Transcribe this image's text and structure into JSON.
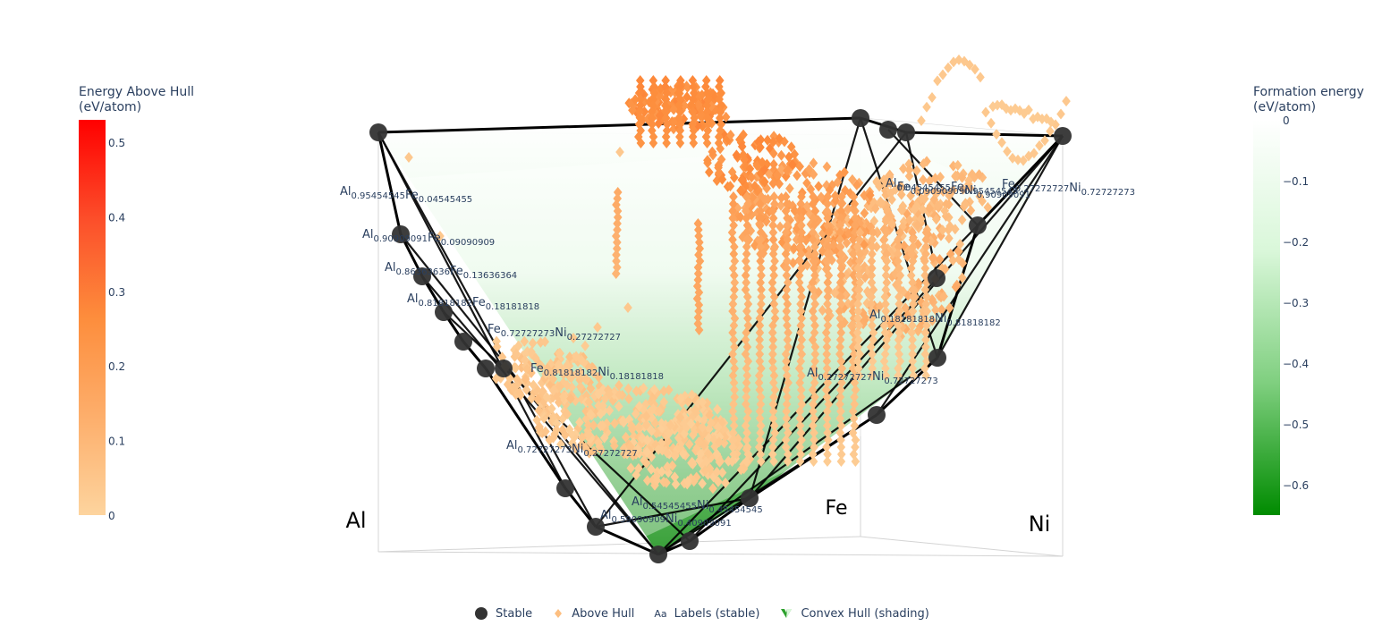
{
  "chart_data": {
    "type": "scatter",
    "subtype": "ternary phase diagram (3D convex hull view)",
    "elements": [
      "Al",
      "Fe",
      "Ni"
    ],
    "stable_labels": [
      {
        "el": [
          "Al",
          "Fe"
        ],
        "sub": [
          "0.95454545",
          "0.04545455"
        ]
      },
      {
        "el": [
          "Al",
          "Fe"
        ],
        "sub": [
          "0.90909091",
          "0.09090909"
        ]
      },
      {
        "el": [
          "Al",
          "Fe"
        ],
        "sub": [
          "0.86363636",
          "0.13636364"
        ]
      },
      {
        "el": [
          "Al",
          "Fe"
        ],
        "sub": [
          "0.81818182",
          "0.18181818"
        ]
      },
      {
        "el": [
          "Fe",
          "Ni"
        ],
        "sub": [
          "0.72727273",
          "0.27272727"
        ]
      },
      {
        "el": [
          "Fe",
          "Ni"
        ],
        "sub": [
          "0.81818182",
          "0.18181818"
        ]
      },
      {
        "el": [
          "Fe",
          "Ni"
        ],
        "sub": [
          "0.09090909",
          "0.90909091"
        ]
      },
      {
        "el": [
          "Al",
          "Ni"
        ],
        "sub": [
          "0.72727273",
          "0.27272727"
        ]
      },
      {
        "el": [
          "Al",
          "Ni"
        ],
        "sub": [
          "0.59090909",
          "0.40909091"
        ]
      },
      {
        "el": [
          "Al",
          "Ni"
        ],
        "sub": [
          "0.54545455",
          "0.45454545"
        ]
      },
      {
        "el": [
          "Al",
          "Ni"
        ],
        "sub": [
          "0.27272727",
          "0.72727273"
        ]
      },
      {
        "el": [
          "Al",
          "Ni"
        ],
        "sub": [
          "0.18181818",
          "0.81818182"
        ]
      },
      {
        "el": [
          "Al",
          "Fe"
        ],
        "sub": [
          "0.04545455",
          "0.95454545"
        ]
      },
      {
        "el": [
          "Fe",
          "Ni"
        ],
        "sub": [
          "0.27272727",
          "0.72727273"
        ]
      }
    ],
    "colorbar_above_hull": {
      "title": "Energy Above Hull\n(eV/atom)",
      "range": [
        0,
        0.53
      ],
      "ticks": [
        0,
        0.1,
        0.2,
        0.3,
        0.4,
        0.5
      ],
      "colors": [
        "#fdd49e",
        "#fdae6b",
        "#fd8d3c",
        "#fc4e2a",
        "#ff0000"
      ]
    },
    "colorbar_formation": {
      "title": "Formation energy\n(eV/atom)",
      "range": [
        -0.65,
        0
      ],
      "ticks": [
        0,
        -0.1,
        -0.2,
        -0.3,
        -0.4,
        -0.5,
        -0.6
      ],
      "colors": [
        "#008b00",
        "#7fcf7f",
        "#d9f7d9",
        "#ffffff"
      ]
    },
    "legend": [
      {
        "name": "Stable",
        "symbol": "circle",
        "color": "#333333"
      },
      {
        "name": "Above Hull",
        "symbol": "diamond",
        "color": "#fdbf80"
      },
      {
        "name": "Labels (stable)",
        "symbol": "text",
        "text": "Aa"
      },
      {
        "name": "Convex Hull (shading)",
        "symbol": "mesh",
        "color": "#2ca02c"
      }
    ]
  }
}
